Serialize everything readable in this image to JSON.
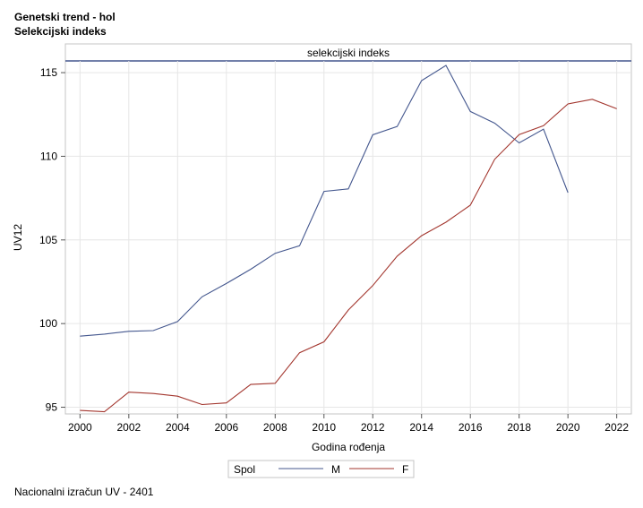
{
  "header": {
    "title": "Genetski trend - hol",
    "subtitle": "Selekcijski indeks"
  },
  "footer": {
    "note": "Nacionalni izračun UV - 2401"
  },
  "chart_data": {
    "type": "line",
    "panel_title": "selekcijski indeks",
    "xlabel": "Godina rođenja",
    "ylabel": "UV12",
    "xlim": [
      1999.4,
      2022.6
    ],
    "ylim": [
      94.6,
      115.7
    ],
    "xticks": [
      2000,
      2002,
      2004,
      2006,
      2008,
      2010,
      2012,
      2014,
      2016,
      2018,
      2020,
      2022
    ],
    "yticks": [
      95,
      100,
      105,
      110,
      115
    ],
    "grid": true,
    "legend": {
      "title": "Spol",
      "placement": "bottom-center"
    },
    "series": [
      {
        "name": "M",
        "color": "#44578e",
        "x": [
          2000,
          2001,
          2002,
          2003,
          2004,
          2005,
          2006,
          2007,
          2008,
          2009,
          2010,
          2011,
          2012,
          2013,
          2014,
          2015,
          2016,
          2017,
          2018,
          2019,
          2020
        ],
        "values": [
          99.25,
          99.37,
          99.54,
          99.58,
          100.12,
          101.6,
          102.4,
          103.25,
          104.2,
          104.65,
          107.9,
          108.05,
          111.28,
          111.78,
          114.52,
          115.43,
          112.68,
          111.98,
          110.8,
          111.62,
          107.83
        ]
      },
      {
        "name": "F",
        "color": "#a3362e",
        "x": [
          2000,
          2001,
          2002,
          2003,
          2004,
          2005,
          2006,
          2007,
          2008,
          2009,
          2010,
          2011,
          2012,
          2013,
          2014,
          2015,
          2016,
          2017,
          2018,
          2019,
          2020,
          2021,
          2022
        ],
        "values": [
          94.81,
          94.73,
          95.9,
          95.82,
          95.66,
          95.16,
          95.26,
          96.36,
          96.43,
          98.26,
          98.91,
          100.81,
          102.27,
          104.03,
          105.25,
          106.06,
          107.08,
          109.82,
          111.3,
          111.83,
          113.13,
          113.41,
          112.84
        ]
      }
    ]
  }
}
